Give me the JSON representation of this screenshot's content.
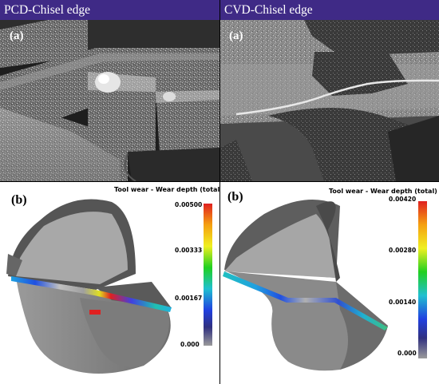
{
  "headers": {
    "left": "PCD-Chisel edge",
    "right": "CVD-Chisel edge"
  },
  "panels": {
    "top_left": {
      "label": "(a)"
    },
    "top_right": {
      "label": "(a)"
    },
    "bottom_left": {
      "label": "(b)",
      "colorbar_title": "Tool wear - Wear depth (total) (mm)",
      "ticks": [
        "0.00500",
        "0.00333",
        "0.00167",
        "0.000"
      ]
    },
    "bottom_right": {
      "label": "(b)",
      "colorbar_title": "Tool wear - Wear depth (total) (mm)",
      "ticks": [
        "0.00420",
        "0.00280",
        "0.00140",
        "0.000"
      ]
    }
  },
  "colors": {
    "header_bg": "#3f2a86",
    "header_text": "#ffffff",
    "colorbar_stops": [
      "#e02020",
      "#f5a010",
      "#f0f020",
      "#20d020",
      "#20c0d0",
      "#2040e0",
      "#303080",
      "#9a9a9a"
    ]
  }
}
